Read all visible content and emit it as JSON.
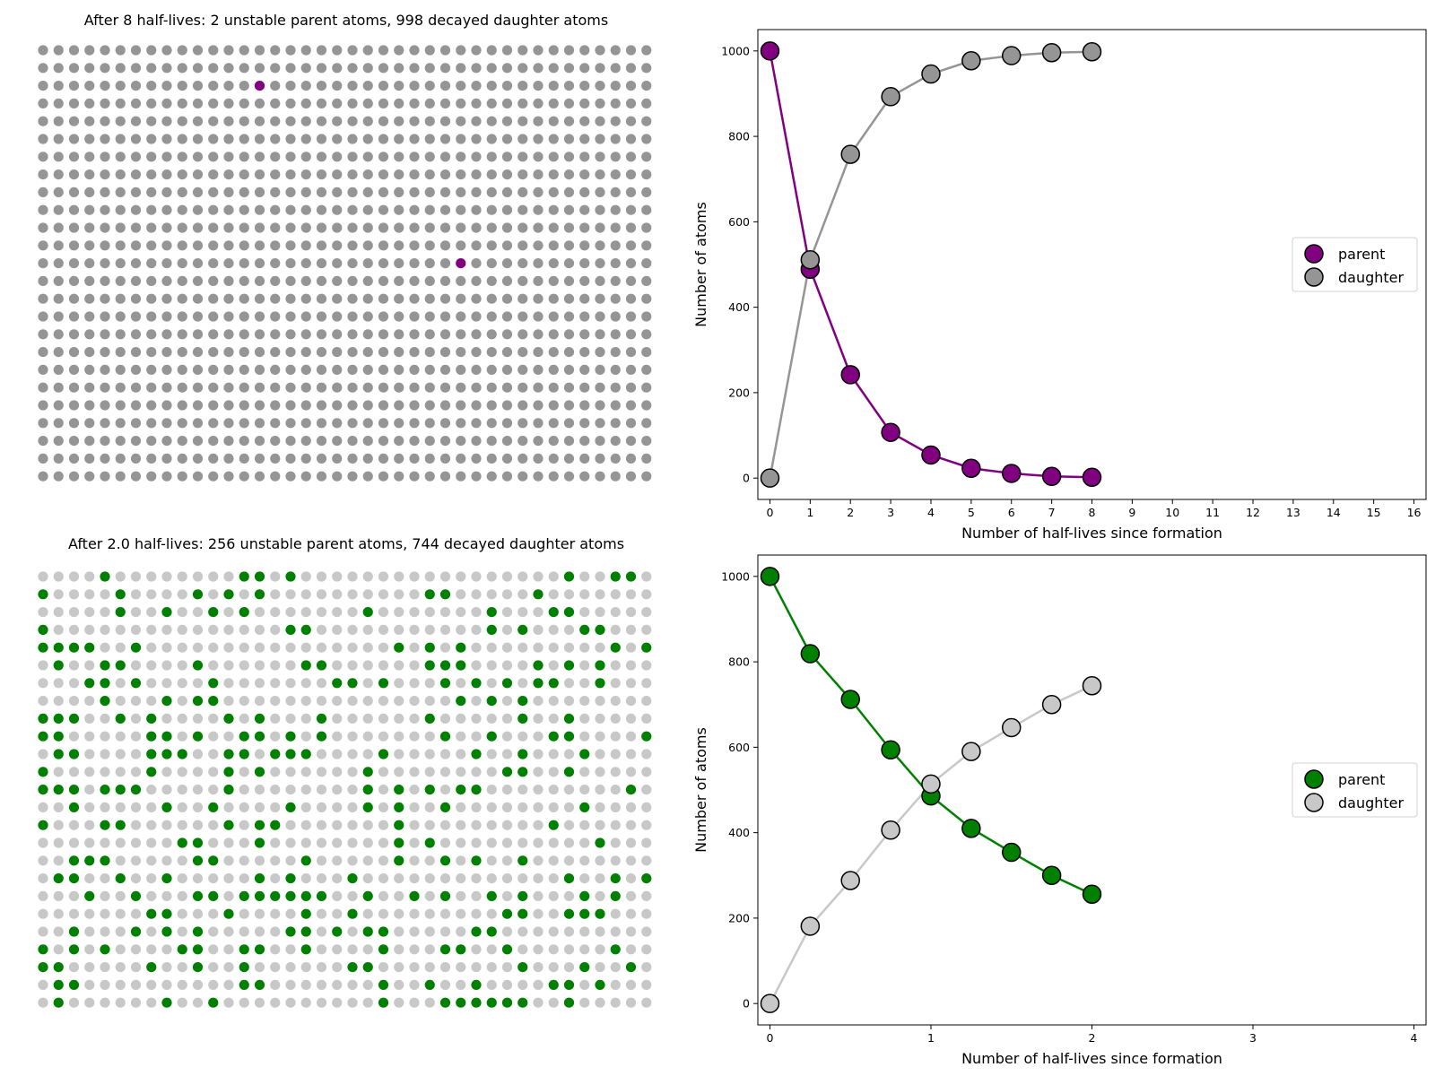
{
  "chart_data": [
    {
      "type": "scatter",
      "title": "After 8 half-lives: 2 unstable parent atoms, 998 decayed daughter atoms",
      "grid": {
        "rows": 25,
        "cols": 40
      },
      "colors": {
        "parent": "#800080",
        "daughter": "#959595"
      },
      "parent_cells": [
        [
          2,
          14
        ],
        [
          12,
          27
        ]
      ]
    },
    {
      "type": "line",
      "xlabel": "Number of half-lives since formation",
      "ylabel": "Number of atoms",
      "xlim": [
        -0.3,
        16.3
      ],
      "ylim": [
        -50,
        1050
      ],
      "xticks": [
        0,
        1,
        2,
        3,
        4,
        5,
        6,
        7,
        8,
        9,
        10,
        11,
        12,
        13,
        14,
        15,
        16
      ],
      "yticks": [
        0,
        200,
        400,
        600,
        800,
        1000
      ],
      "legend": "center-right",
      "x": [
        0,
        1,
        2,
        3,
        4,
        5,
        6,
        7,
        8
      ],
      "series": [
        {
          "name": "parent",
          "color": "#800080",
          "values": [
            1000,
            489,
            242,
            107,
            54,
            23,
            11,
            4,
            2
          ]
        },
        {
          "name": "daughter",
          "color": "#959595",
          "values": [
            0,
            511,
            758,
            893,
            946,
            977,
            989,
            996,
            998
          ]
        }
      ]
    },
    {
      "type": "scatter",
      "title": "After 2.0 half-lives: 256 unstable parent atoms, 744 decayed daughter atoms",
      "grid": {
        "rows": 25,
        "cols": 40
      },
      "colors": {
        "parent": "#008000",
        "daughter": "#c8c8c8"
      },
      "parent_rows": [
        "..........................#.................",
        "...#...................................................................",
        "#.....................................",
        "#..###",
        "#..##"
      ]
    },
    {
      "type": "line",
      "xlabel": "Number of half-lives since formation",
      "ylabel": "Number of atoms",
      "xlim": [
        -0.075,
        4.075
      ],
      "ylim": [
        -50,
        1050
      ],
      "xticks": [
        0,
        1,
        2,
        3,
        4
      ],
      "yticks": [
        0,
        200,
        400,
        600,
        800,
        1000
      ],
      "legend": "center-right",
      "x": [
        0,
        0.25,
        0.5,
        0.75,
        1,
        1.25,
        1.5,
        1.75,
        2
      ],
      "series": [
        {
          "name": "parent",
          "color": "#008000",
          "values": [
            1000,
            819,
            712,
            594,
            486,
            410,
            354,
            300,
            256
          ]
        },
        {
          "name": "daughter",
          "color": "#c8c8c8",
          "values": [
            0,
            181,
            288,
            406,
            514,
            590,
            646,
            700,
            744
          ]
        }
      ]
    }
  ]
}
